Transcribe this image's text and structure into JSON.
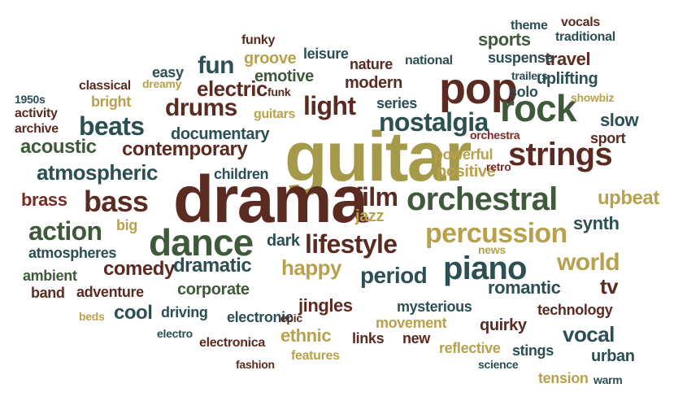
{
  "colors": {
    "olive": "#a59a4a",
    "brown": "#5b2a21",
    "red": "#7b2a25",
    "teal": "#2b4f52",
    "green": "#3e5a3a",
    "tan": "#b8a14d"
  },
  "words": [
    {
      "text": "guitar",
      "c": "olive"
    },
    {
      "text": "drama",
      "c": "brown"
    },
    {
      "text": "pop",
      "c": "brown"
    },
    {
      "text": "rock",
      "c": "green"
    },
    {
      "text": "orchestral",
      "c": "green"
    },
    {
      "text": "strings",
      "c": "brown"
    },
    {
      "text": "dance",
      "c": "green"
    },
    {
      "text": "piano",
      "c": "teal"
    },
    {
      "text": "percussion",
      "c": "tan"
    },
    {
      "text": "nostalgia",
      "c": "teal"
    },
    {
      "text": "light",
      "c": "brown"
    },
    {
      "text": "bass",
      "c": "brown"
    },
    {
      "text": "action",
      "c": "green"
    },
    {
      "text": "lifestyle",
      "c": "brown"
    },
    {
      "text": "film",
      "c": "brown"
    },
    {
      "text": "world",
      "c": "tan"
    },
    {
      "text": "period",
      "c": "teal"
    },
    {
      "text": "happy",
      "c": "tan"
    },
    {
      "text": "vocal",
      "c": "teal"
    },
    {
      "text": "tv",
      "c": "brown"
    },
    {
      "text": "beats",
      "c": "teal"
    },
    {
      "text": "drums",
      "c": "brown"
    },
    {
      "text": "atmospheric",
      "c": "teal"
    },
    {
      "text": "upbeat",
      "c": "tan"
    },
    {
      "text": "fun",
      "c": "teal"
    },
    {
      "text": "electric",
      "c": "brown"
    },
    {
      "text": "contemporary",
      "c": "brown"
    },
    {
      "text": "acoustic",
      "c": "green"
    },
    {
      "text": "dramatic",
      "c": "teal"
    },
    {
      "text": "synth",
      "c": "teal"
    },
    {
      "text": "travel",
      "c": "brown"
    },
    {
      "text": "jingles",
      "c": "brown"
    },
    {
      "text": "cool",
      "c": "teal"
    },
    {
      "text": "comedy",
      "c": "brown"
    },
    {
      "text": "brass",
      "c": "red"
    },
    {
      "text": "ethnic",
      "c": "tan"
    },
    {
      "text": "romantic",
      "c": "teal"
    },
    {
      "text": "slow",
      "c": "teal"
    },
    {
      "text": "emotive",
      "c": "green"
    },
    {
      "text": "uplifting",
      "c": "teal"
    },
    {
      "text": "positive",
      "c": "tan"
    },
    {
      "text": "sports",
      "c": "green"
    },
    {
      "text": "corporate",
      "c": "green"
    },
    {
      "text": "modern",
      "c": "brown"
    },
    {
      "text": "documentary",
      "c": "teal"
    },
    {
      "text": "groove",
      "c": "tan"
    },
    {
      "text": "dark",
      "c": "teal"
    },
    {
      "text": "urban",
      "c": "teal"
    },
    {
      "text": "quirky",
      "c": "brown"
    },
    {
      "text": "jazz",
      "c": "tan"
    },
    {
      "text": "driving",
      "c": "teal"
    },
    {
      "text": "mysterious",
      "c": "teal"
    },
    {
      "text": "suspense",
      "c": "teal"
    },
    {
      "text": "technology",
      "c": "brown"
    },
    {
      "text": "stings",
      "c": "teal"
    },
    {
      "text": "electronic",
      "c": "teal"
    },
    {
      "text": "sport",
      "c": "brown"
    },
    {
      "text": "children",
      "c": "teal"
    },
    {
      "text": "powerful",
      "c": "tan"
    },
    {
      "text": "links",
      "c": "brown"
    },
    {
      "text": "movement",
      "c": "tan"
    },
    {
      "text": "reflective",
      "c": "tan"
    },
    {
      "text": "series",
      "c": "teal"
    },
    {
      "text": "ambient",
      "c": "green"
    },
    {
      "text": "atmospheres",
      "c": "teal"
    },
    {
      "text": "adventure",
      "c": "brown"
    },
    {
      "text": "band",
      "c": "brown"
    },
    {
      "text": "big",
      "c": "tan"
    },
    {
      "text": "bright",
      "c": "tan"
    },
    {
      "text": "tension",
      "c": "tan"
    },
    {
      "text": "new",
      "c": "brown"
    },
    {
      "text": "solo",
      "c": "teal"
    },
    {
      "text": "easy",
      "c": "teal"
    },
    {
      "text": "nature",
      "c": "brown"
    },
    {
      "text": "leisure",
      "c": "teal"
    },
    {
      "text": "vocals",
      "c": "brown"
    },
    {
      "text": "traditional",
      "c": "teal"
    },
    {
      "text": "theme",
      "c": "teal"
    },
    {
      "text": "funky",
      "c": "brown"
    },
    {
      "text": "classical",
      "c": "brown"
    },
    {
      "text": "dreamy",
      "c": "tan"
    },
    {
      "text": "funk",
      "c": "brown"
    },
    {
      "text": "guitars",
      "c": "tan"
    },
    {
      "text": "national",
      "c": "teal"
    },
    {
      "text": "trailers",
      "c": "teal"
    },
    {
      "text": "showbiz",
      "c": "tan"
    },
    {
      "text": "1950s",
      "c": "teal"
    },
    {
      "text": "activity",
      "c": "brown"
    },
    {
      "text": "archive",
      "c": "brown"
    },
    {
      "text": "orchestra",
      "c": "red"
    },
    {
      "text": "retro",
      "c": "red"
    },
    {
      "text": "news",
      "c": "tan"
    },
    {
      "text": "epic",
      "c": "brown"
    },
    {
      "text": "beds",
      "c": "tan"
    },
    {
      "text": "electro",
      "c": "teal"
    },
    {
      "text": "electronica",
      "c": "brown"
    },
    {
      "text": "features",
      "c": "tan"
    },
    {
      "text": "fashion",
      "c": "brown"
    },
    {
      "text": "science",
      "c": "teal"
    },
    {
      "text": "warm",
      "c": "teal"
    }
  ]
}
